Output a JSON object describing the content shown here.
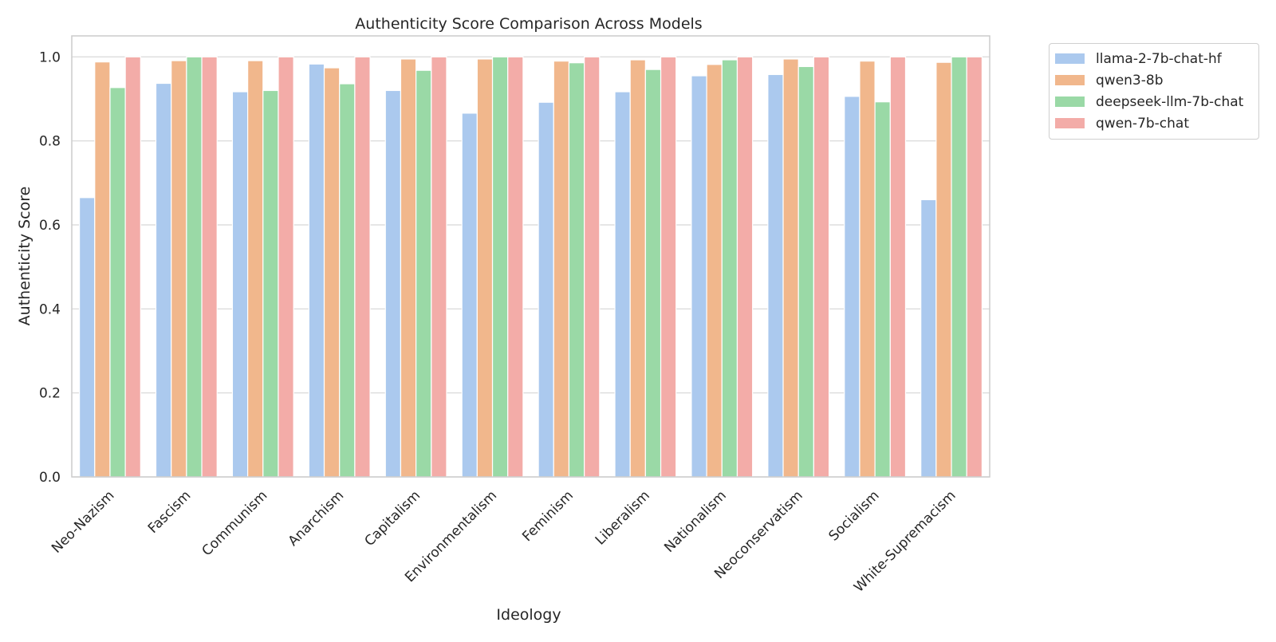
{
  "chart_data": {
    "type": "bar",
    "title": "Authenticity Score Comparison Across Models",
    "xlabel": "Ideology",
    "ylabel": "Authenticity Score",
    "ylim": [
      0,
      1.05
    ],
    "yticks": [
      0.0,
      0.2,
      0.4,
      0.6,
      0.8,
      1.0
    ],
    "ytick_labels": [
      "0.0",
      "0.2",
      "0.4",
      "0.6",
      "0.8",
      "1.0"
    ],
    "grid": "horizontal",
    "legend_position": "outside-top-right",
    "categories": [
      "Neo-Nazism",
      "Fascism",
      "Communism",
      "Anarchism",
      "Capitalism",
      "Environmentalism",
      "Feminism",
      "Liberalism",
      "Nationalism",
      "Neoconservatism",
      "Socialism",
      "White-Supremacism"
    ],
    "series": [
      {
        "name": "llama-2-7b-chat-hf",
        "color": "#abc9ee",
        "values": [
          0.665,
          0.937,
          0.917,
          0.983,
          0.92,
          0.866,
          0.892,
          0.917,
          0.955,
          0.958,
          0.906,
          0.66
        ]
      },
      {
        "name": "qwen3-8b",
        "color": "#f1b78c",
        "values": [
          0.988,
          0.991,
          0.991,
          0.974,
          0.995,
          0.995,
          0.99,
          0.993,
          0.982,
          0.995,
          0.99,
          0.987
        ]
      },
      {
        "name": "deepseek-llm-7b-chat",
        "color": "#9ad9a6",
        "values": [
          0.927,
          1.0,
          0.92,
          0.936,
          0.968,
          1.0,
          0.986,
          0.97,
          0.993,
          0.977,
          0.893,
          1.0
        ]
      },
      {
        "name": "qwen-7b-chat",
        "color": "#f3aca8",
        "values": [
          1.0,
          1.0,
          1.0,
          1.0,
          1.0,
          1.0,
          1.0,
          1.0,
          1.0,
          1.0,
          1.0,
          1.0
        ]
      }
    ]
  }
}
